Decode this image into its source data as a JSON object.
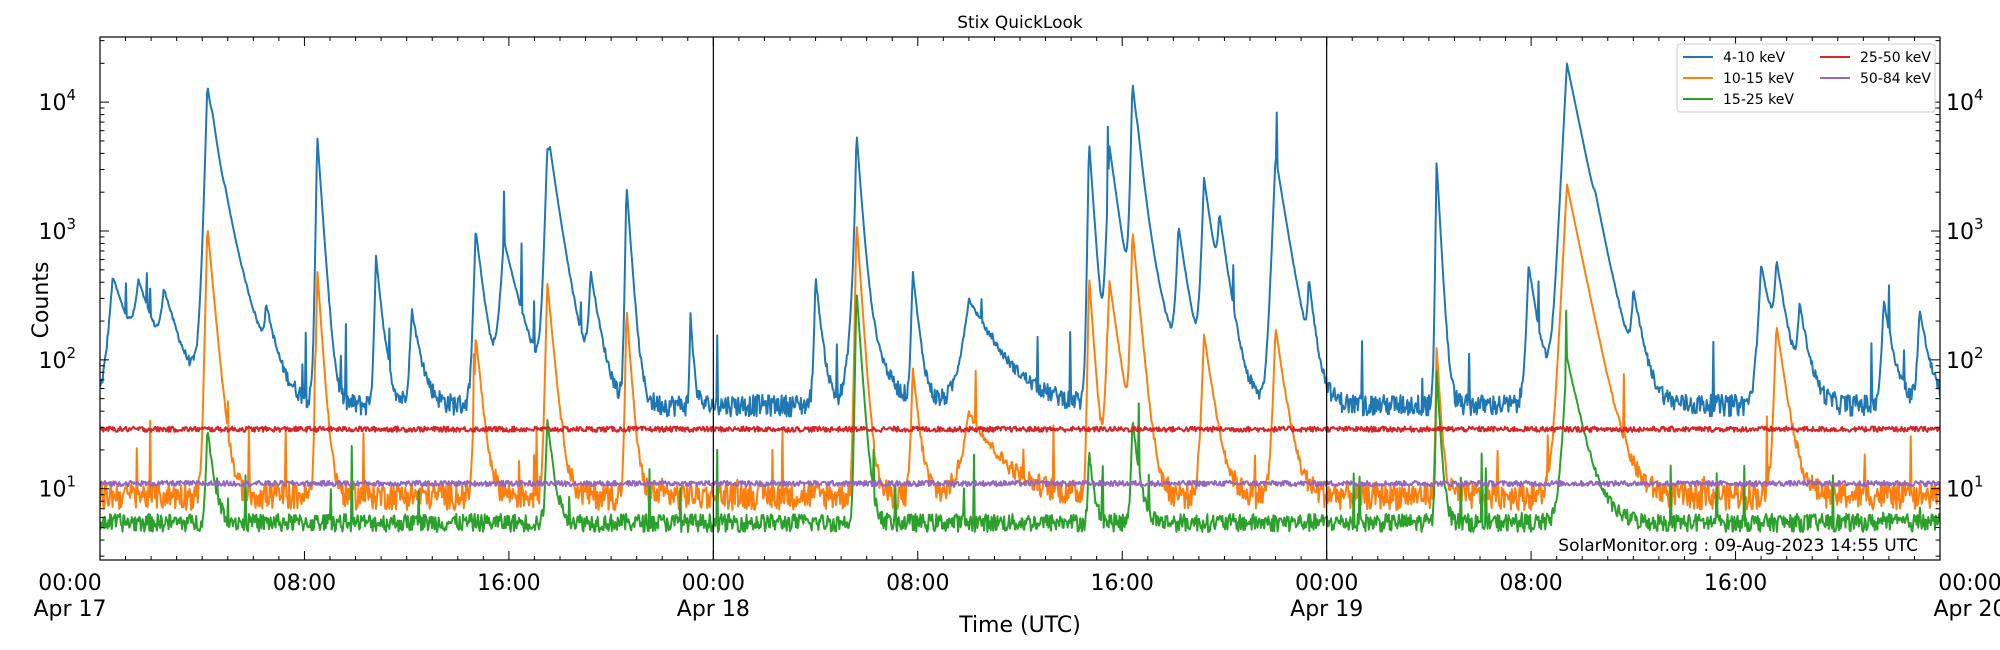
{
  "chart_data": {
    "type": "line",
    "title": "Stix QuickLook",
    "xlabel": "Time (UTC)",
    "ylabel": "Counts",
    "yscale": "log",
    "ylim": [
      2.8,
      32000
    ],
    "xlim_hours": [
      0,
      72
    ],
    "grid": false,
    "legend_position": "top-right",
    "credit": "SolarMonitor.org : 09-Aug-2023 14:55 UTC",
    "x_ticks": [
      {
        "hour": 0,
        "line1": "00:00",
        "line2": "Apr 17"
      },
      {
        "hour": 8,
        "line1": "08:00",
        "line2": ""
      },
      {
        "hour": 16,
        "line1": "16:00",
        "line2": ""
      },
      {
        "hour": 24,
        "line1": "00:00",
        "line2": "Apr 18"
      },
      {
        "hour": 32,
        "line1": "08:00",
        "line2": ""
      },
      {
        "hour": 40,
        "line1": "16:00",
        "line2": ""
      },
      {
        "hour": 48,
        "line1": "00:00",
        "line2": "Apr 19"
      },
      {
        "hour": 56,
        "line1": "08:00",
        "line2": ""
      },
      {
        "hour": 64,
        "line1": "16:00",
        "line2": ""
      },
      {
        "hour": 72,
        "line1": "00:00",
        "line2": "Apr 20"
      }
    ],
    "day_boundaries_hours": [
      24,
      48
    ],
    "y_ticks": [
      {
        "value": 10,
        "base": "10",
        "exp": "1"
      },
      {
        "value": 100,
        "base": "10",
        "exp": "2"
      },
      {
        "value": 1000,
        "base": "10",
        "exp": "3"
      },
      {
        "value": 10000,
        "base": "10",
        "exp": "4"
      }
    ],
    "series": [
      {
        "name": "4-10 keV",
        "color": "#1f77b4",
        "baseline": 45,
        "noise": 0.12,
        "flares": [
          [
            0.5,
            400,
            0.6
          ],
          [
            1.5,
            300,
            0.6
          ],
          [
            2.5,
            250,
            0.5
          ],
          [
            4.2,
            13000,
            0.25
          ],
          [
            4.4,
            2500,
            0.6
          ],
          [
            4.9,
            300,
            0.4
          ],
          [
            6.5,
            150,
            0.3
          ],
          [
            8.5,
            5500,
            0.15
          ],
          [
            10.8,
            600,
            0.2
          ],
          [
            12.2,
            200,
            0.3
          ],
          [
            14.7,
            1000,
            0.25
          ],
          [
            15.8,
            800,
            0.5
          ],
          [
            17.5,
            3500,
            0.25
          ],
          [
            17.6,
            2200,
            0.4
          ],
          [
            19.2,
            400,
            0.3
          ],
          [
            20.6,
            2300,
            0.15
          ],
          [
            23.1,
            200,
            0.1
          ],
          [
            28.0,
            400,
            0.2
          ],
          [
            29.6,
            5500,
            0.15
          ],
          [
            29.5,
            500,
            0.5
          ],
          [
            31.8,
            450,
            0.2
          ],
          [
            34.0,
            250,
            1.0
          ],
          [
            38.7,
            5000,
            0.15
          ],
          [
            39.5,
            4500,
            0.3
          ],
          [
            40.4,
            14000,
            0.2
          ],
          [
            40.6,
            1500,
            0.5
          ],
          [
            42.2,
            1000,
            0.3
          ],
          [
            43.2,
            2500,
            0.3
          ],
          [
            43.8,
            1000,
            0.3
          ],
          [
            46.0,
            3800,
            0.35
          ],
          [
            47.3,
            300,
            0.2
          ],
          [
            52.3,
            3500,
            0.12
          ],
          [
            55.9,
            500,
            0.3
          ],
          [
            57.4,
            20000,
            0.45
          ],
          [
            58.5,
            300,
            0.3
          ],
          [
            60.0,
            250,
            0.3
          ],
          [
            65.0,
            500,
            0.4
          ],
          [
            65.6,
            450,
            0.3
          ],
          [
            66.5,
            200,
            0.3
          ],
          [
            69.8,
            250,
            0.3
          ],
          [
            71.2,
            200,
            0.3
          ]
        ]
      },
      {
        "name": "10-15 keV",
        "color": "#ff7f0e",
        "baseline": 9,
        "noise": 0.15,
        "flares": [
          [
            4.2,
            1100,
            0.2
          ],
          [
            8.5,
            500,
            0.15
          ],
          [
            14.7,
            150,
            0.2
          ],
          [
            17.5,
            400,
            0.2
          ],
          [
            20.6,
            250,
            0.15
          ],
          [
            29.6,
            1200,
            0.15
          ],
          [
            31.8,
            80,
            0.2
          ],
          [
            34.0,
            30,
            1.0
          ],
          [
            38.7,
            450,
            0.15
          ],
          [
            39.5,
            400,
            0.3
          ],
          [
            40.4,
            1000,
            0.2
          ],
          [
            43.2,
            150,
            0.3
          ],
          [
            46.0,
            170,
            0.3
          ],
          [
            52.3,
            120,
            0.12
          ],
          [
            57.4,
            2300,
            0.45
          ],
          [
            65.6,
            180,
            0.3
          ]
        ]
      },
      {
        "name": "15-25 keV",
        "color": "#2ca02c",
        "baseline": 5.5,
        "noise": 0.1,
        "flares": [
          [
            4.2,
            25,
            0.2
          ],
          [
            17.5,
            30,
            0.2
          ],
          [
            29.6,
            350,
            0.15
          ],
          [
            38.7,
            15,
            0.15
          ],
          [
            40.4,
            30,
            0.2
          ],
          [
            52.3,
            80,
            0.12
          ],
          [
            57.4,
            100,
            0.45
          ]
        ]
      },
      {
        "name": "25-50 keV",
        "color": "#d62728",
        "baseline": 29,
        "noise": 0.03,
        "flares": []
      },
      {
        "name": "50-84 keV",
        "color": "#9467bd",
        "baseline": 11,
        "noise": 0.03,
        "flares": []
      }
    ]
  }
}
